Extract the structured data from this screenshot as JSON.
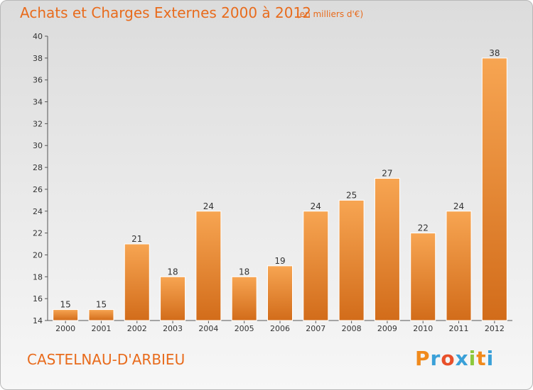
{
  "chart_data": {
    "type": "bar",
    "title": "Achats et Charges Externes 2000 à 2012",
    "subtitle": "(en milliers d'€)",
    "categories": [
      "2000",
      "2001",
      "2002",
      "2003",
      "2004",
      "2005",
      "2006",
      "2007",
      "2008",
      "2009",
      "2010",
      "2011",
      "2012"
    ],
    "values": [
      15,
      15,
      21,
      18,
      24,
      18,
      19,
      24,
      25,
      27,
      22,
      24,
      38
    ],
    "ylim": [
      14,
      40
    ],
    "yticks": [
      14,
      16,
      18,
      20,
      22,
      24,
      26,
      28,
      30,
      32,
      34,
      36,
      38,
      40
    ],
    "grid": false,
    "bar_color": "#f0963c",
    "bar_color_dark": "#d26c1a",
    "xlabel": "",
    "ylabel": ""
  },
  "location": "CASTELNAU-D'ARBIEU",
  "logo": {
    "letters": [
      "P",
      "r",
      "o",
      "x",
      "i",
      "t",
      "i"
    ],
    "colors": [
      "#f08a1c",
      "#3aa0d8",
      "#e8502a",
      "#3aa0d8",
      "#8cc83c",
      "#f08a1c",
      "#3aa0d8"
    ]
  },
  "colors": {
    "title": "#e86b1c",
    "axis": "#555555"
  }
}
